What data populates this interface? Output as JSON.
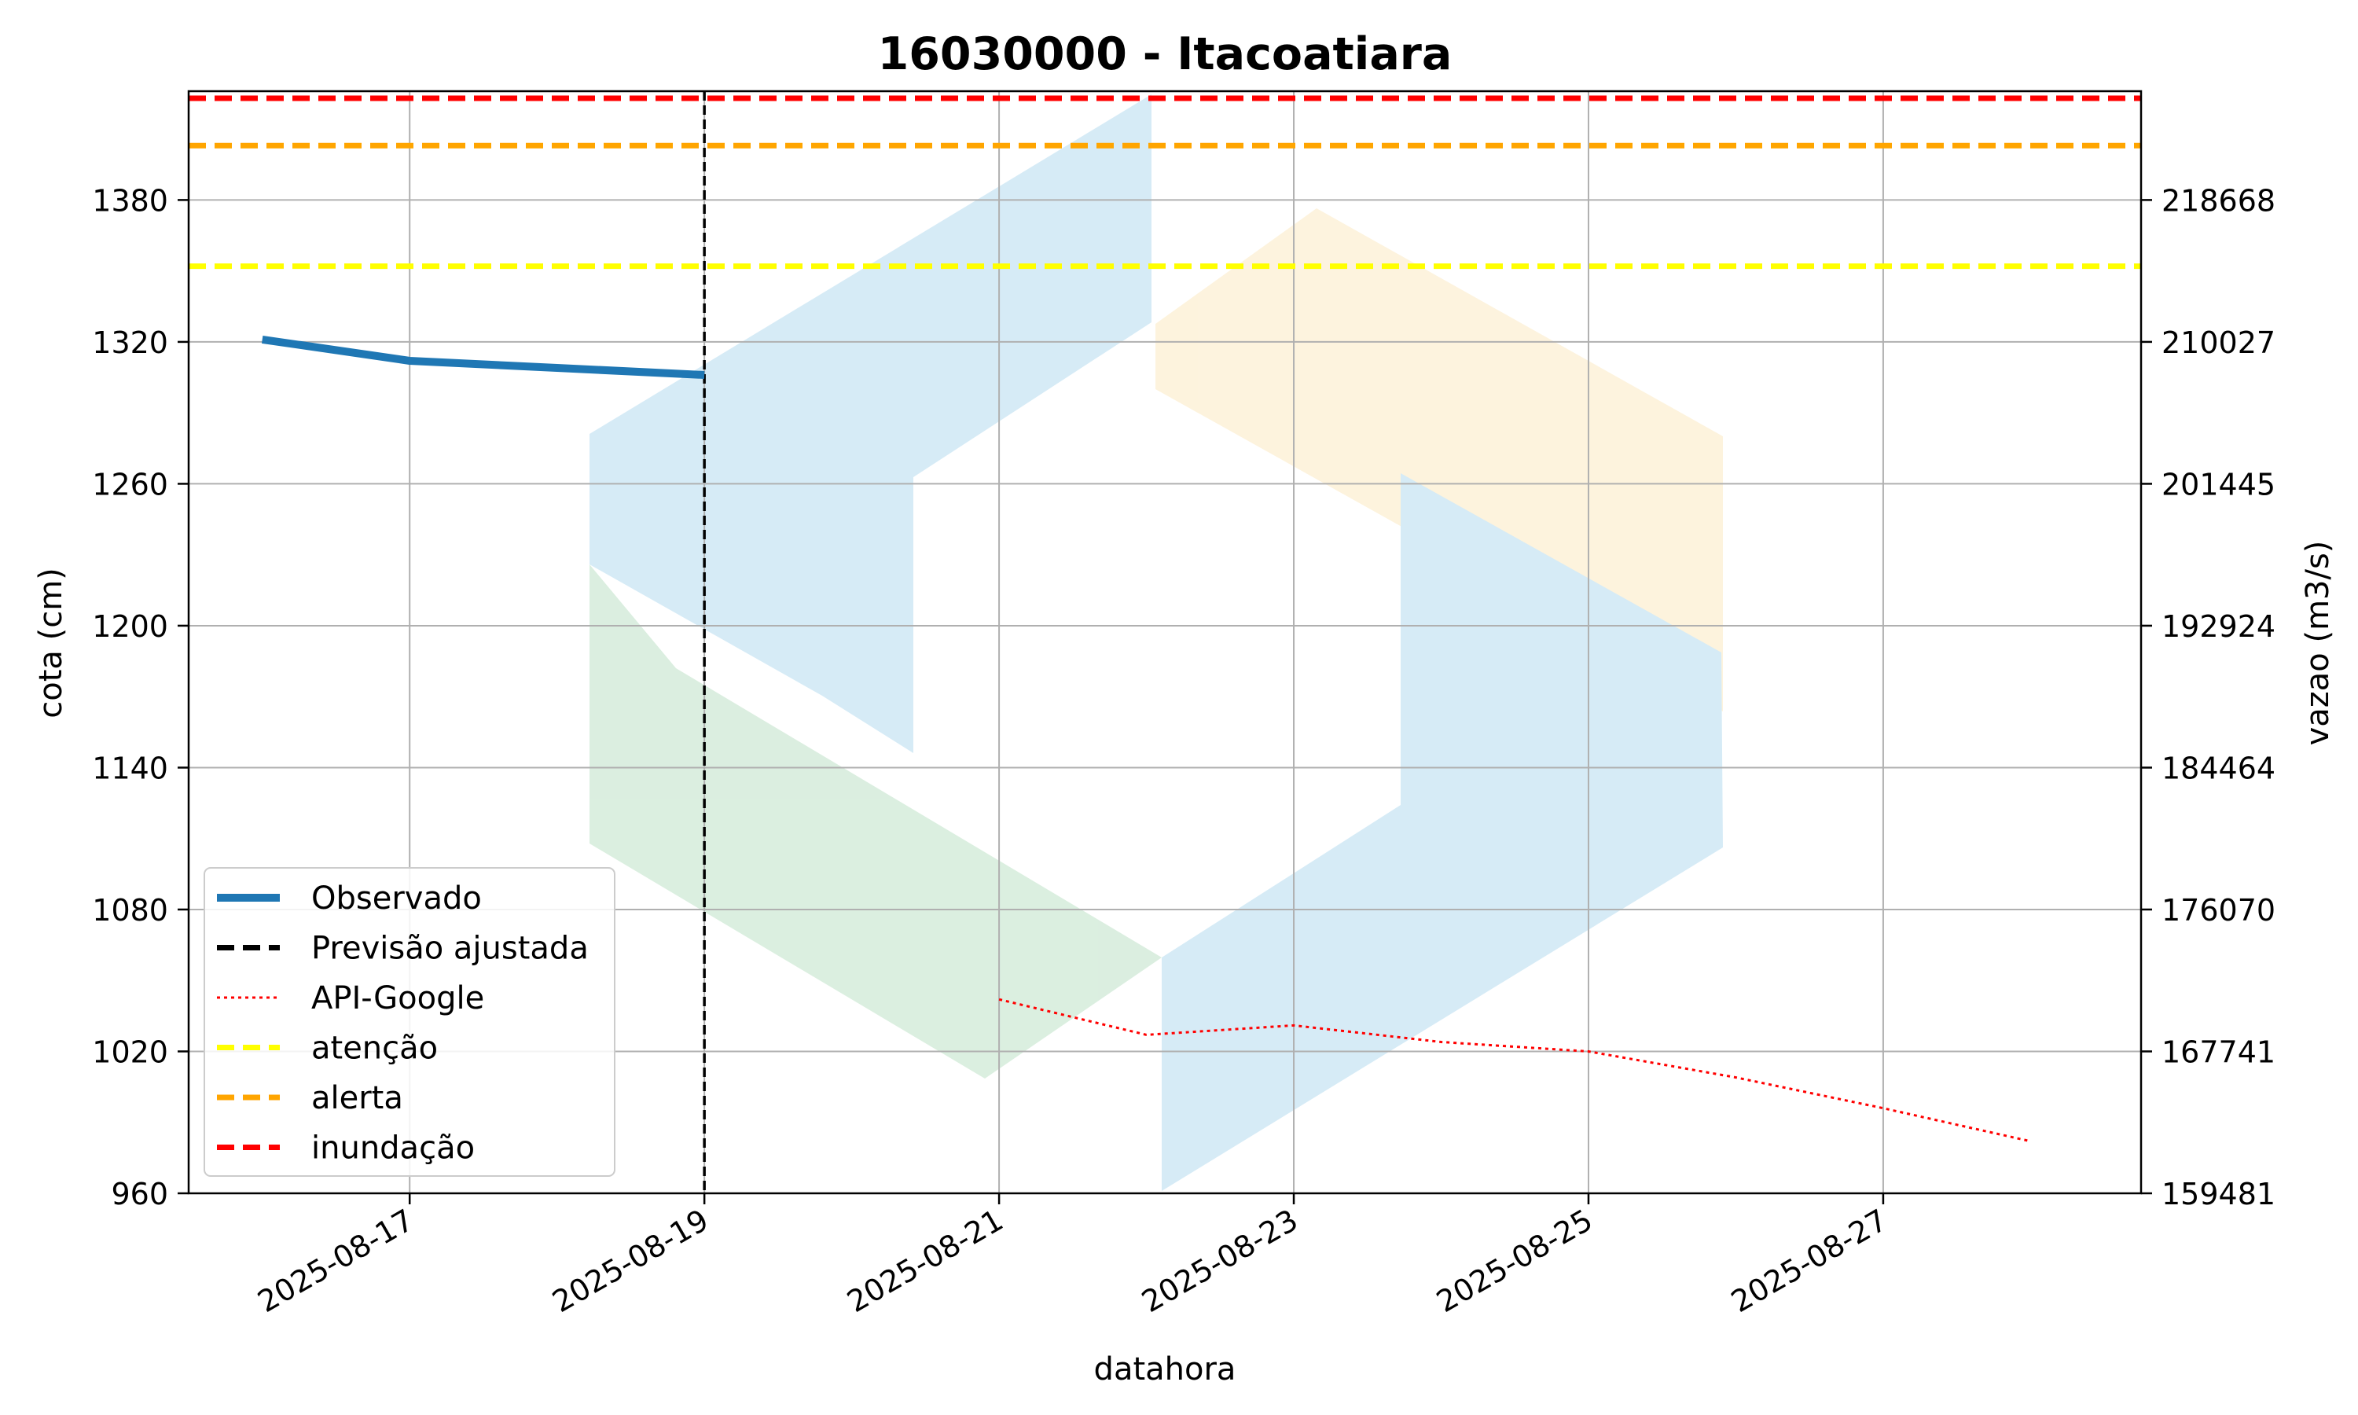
{
  "chart_data": {
    "type": "line",
    "title": "16030000 - Itacoatiara",
    "xlabel": "datahora",
    "ylabel": "cota (cm)",
    "y2label": "vazao (m3/s)",
    "xlim": [
      "2025-08-15T12:00",
      "2025-08-28T18:00"
    ],
    "ylim": [
      960,
      1426
    ],
    "x_ticks": [
      "2025-08-17",
      "2025-08-19",
      "2025-08-21",
      "2025-08-23",
      "2025-08-25",
      "2025-08-27"
    ],
    "y_ticks": [
      960,
      1020,
      1080,
      1140,
      1200,
      1260,
      1320,
      1380
    ],
    "y2_ticks": [
      "159481",
      "167741",
      "176070",
      "184464",
      "192924",
      "201445",
      "210027",
      "218668"
    ],
    "grid": true,
    "legend_position": "lower-left",
    "series": [
      {
        "name": "Observado",
        "color": "#1f77b4",
        "style": "solid",
        "x": [
          "2025-08-16T00:00",
          "2025-08-17T00:00",
          "2025-08-18T00:00",
          "2025-08-19T00:00"
        ],
        "values": [
          1321,
          1312,
          1309,
          1306
        ]
      },
      {
        "name": "Previsão ajustada",
        "color": "#000000",
        "style": "dashed",
        "x": [],
        "values": []
      },
      {
        "name": "API-Google",
        "color": "#ff0000",
        "style": "dotted",
        "x": [
          "2025-08-21T00:00",
          "2025-08-22T00:00",
          "2025-08-23T00:00",
          "2025-08-24T00:00",
          "2025-08-25T00:00",
          "2025-08-26T00:00",
          "2025-08-27T00:00",
          "2025-08-28T00:00"
        ],
        "values": [
          1042,
          1027,
          1031,
          1024,
          1020,
          1009,
          996,
          982
        ]
      },
      {
        "name": "atenção",
        "color": "#ffff00",
        "style": "dashed",
        "value": 1352
      },
      {
        "name": "alerta",
        "color": "#ffa500",
        "style": "dashed",
        "value": 1403
      },
      {
        "name": "inundação",
        "color": "#ff0000",
        "style": "dashed",
        "value": 1423
      }
    ],
    "forecast_marker": {
      "x": "2025-08-19T00:00",
      "color": "#000000",
      "style": "dashed"
    },
    "watermark": {
      "colors": [
        "#cfe8f5",
        "#fdf1d8",
        "#d5ecdb"
      ]
    }
  }
}
